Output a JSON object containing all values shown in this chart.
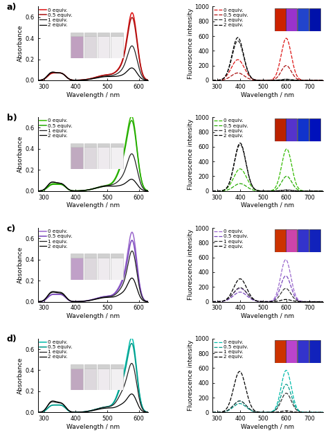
{
  "rows": [
    "a",
    "b",
    "c",
    "d"
  ],
  "abs_colors": [
    [
      "#dd1111",
      "#aa1111",
      "#222222",
      "#000000"
    ],
    [
      "#33bb00",
      "#22aa00",
      "#222222",
      "#000000"
    ],
    [
      "#9966cc",
      "#7744bb",
      "#222222",
      "#000000"
    ],
    [
      "#00bbaa",
      "#009988",
      "#222222",
      "#000000"
    ]
  ],
  "fl_colors_colored": [
    [
      "#dd1111",
      "#aa1111"
    ],
    [
      "#33bb00",
      "#22aa00"
    ],
    [
      "#9966cc",
      "#7744bb"
    ],
    [
      "#00bbaa",
      "#009988"
    ]
  ],
  "fl_colors_black": [
    "#333333",
    "#000000"
  ],
  "legend_labels": [
    "0 equiv.",
    "0.5 equiv.",
    "1 equiv.",
    "2 equiv."
  ],
  "abs_ylim": [
    0,
    0.7
  ],
  "fl_ylim": [
    0,
    1000
  ],
  "abs_yticks": [
    0.0,
    0.2,
    0.4,
    0.6
  ],
  "fl_yticks": [
    0,
    200,
    400,
    600,
    800,
    1000
  ],
  "abs_xlabel": "Wavelength / nm",
  "fl_xlabel": "Wavelength / nm",
  "abs_ylabel": "Absorbance",
  "fl_ylabel": "Fluorescence intensity",
  "abs_xlim": [
    280,
    630
  ],
  "fl_xlim": [
    280,
    760
  ],
  "abs_xticks": [
    300,
    400,
    500,
    600
  ],
  "fl_xticks": [
    300,
    400,
    500,
    600,
    700
  ]
}
